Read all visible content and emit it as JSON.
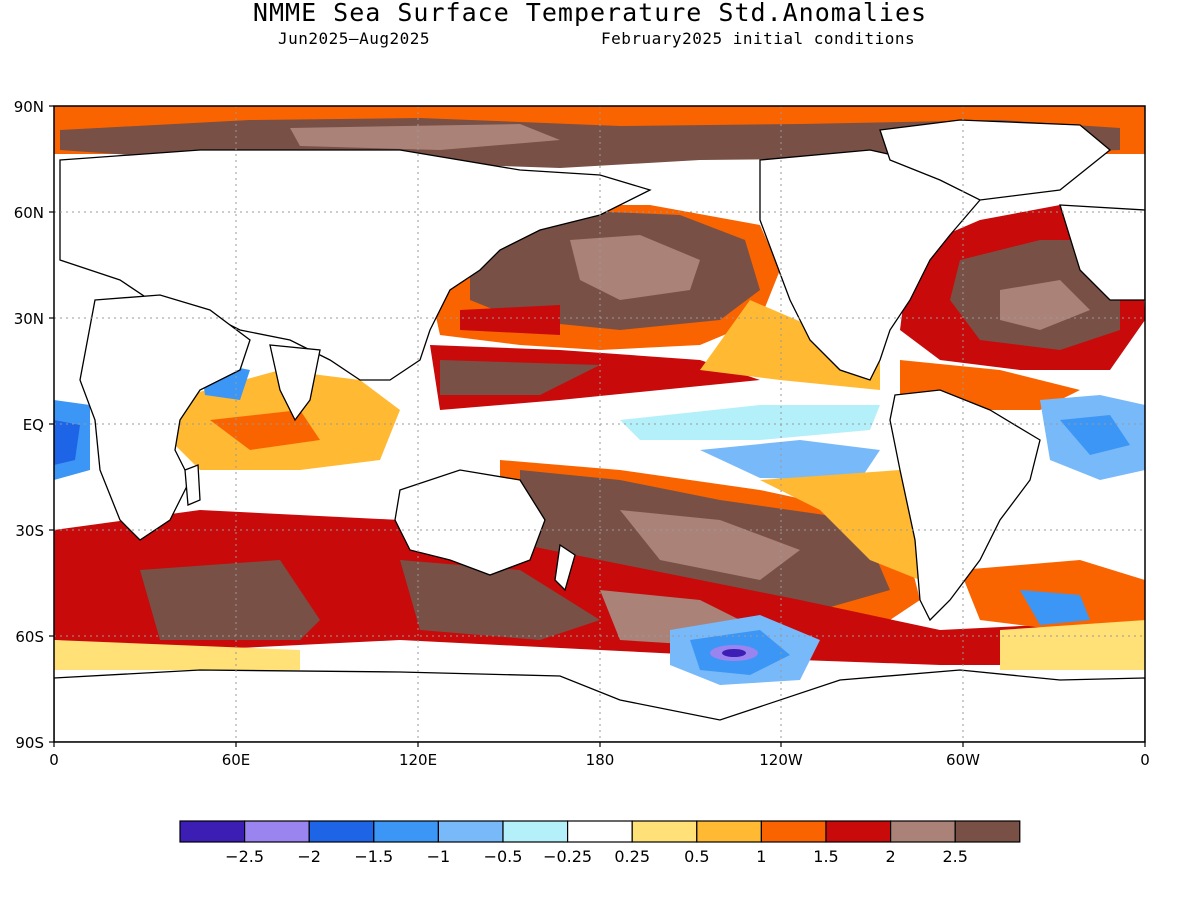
{
  "title": "NMME Sea Surface Temperature Std.Anomalies",
  "subtitle_left": "Jun2025–Aug2025",
  "subtitle_right": "February2025 initial conditions",
  "lat_labels": [
    "90N",
    "60N",
    "30N",
    "EQ",
    "30S",
    "60S",
    "90S"
  ],
  "lon_labels": [
    "0",
    "60E",
    "120E",
    "180",
    "120W",
    "60W",
    "0"
  ],
  "colorbar": {
    "colors": [
      "#3c1eb4",
      "#9a84f0",
      "#1e64e6",
      "#3c96f5",
      "#78b9fa",
      "#b4f0fa",
      "#ffffff",
      "#ffe178",
      "#ffb932",
      "#fa6400",
      "#c80a0a",
      "#aa8278",
      "#785046"
    ],
    "labels": [
      "−2.5",
      "−2",
      "−1.5",
      "−1",
      "−0.5",
      "−0.25",
      "0.25",
      "0.5",
      "1",
      "1.5",
      "2",
      "2.5"
    ]
  },
  "palette": {
    "land": "#ffffff",
    "coast": "#000000",
    "grid": "#999999"
  }
}
